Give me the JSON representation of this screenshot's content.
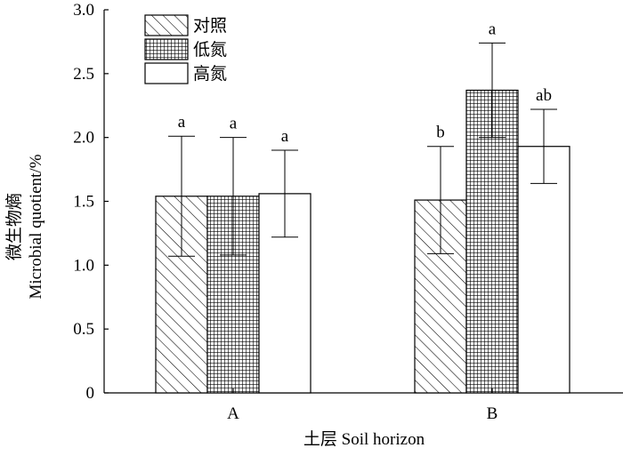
{
  "chart_data": {
    "type": "bar",
    "categories": [
      "A",
      "B"
    ],
    "xlabel": "土层 Soil horizon",
    "ylabel_cn": "微生物熵",
    "ylabel_en": "Microbial quotient/%",
    "ylim": [
      0,
      3.0
    ],
    "yticks": [
      "0",
      "0.5",
      "1.0",
      "1.5",
      "2.0",
      "2.5",
      "3.0"
    ],
    "grid": false,
    "legend_position": "top-left",
    "series": [
      {
        "name": "对照",
        "pattern": "diagonal-hatch",
        "values": [
          1.54,
          1.51
        ],
        "errors": [
          0.47,
          0.42
        ],
        "letters": [
          "a",
          "b"
        ]
      },
      {
        "name": "低氮",
        "pattern": "grid-hatch",
        "values": [
          1.54,
          2.37
        ],
        "errors": [
          0.46,
          0.37
        ],
        "letters": [
          "a",
          "a"
        ]
      },
      {
        "name": "高氮",
        "pattern": "blank",
        "values": [
          1.56,
          1.93
        ],
        "errors": [
          0.34,
          0.29
        ],
        "letters": [
          "a",
          "ab"
        ]
      }
    ]
  }
}
